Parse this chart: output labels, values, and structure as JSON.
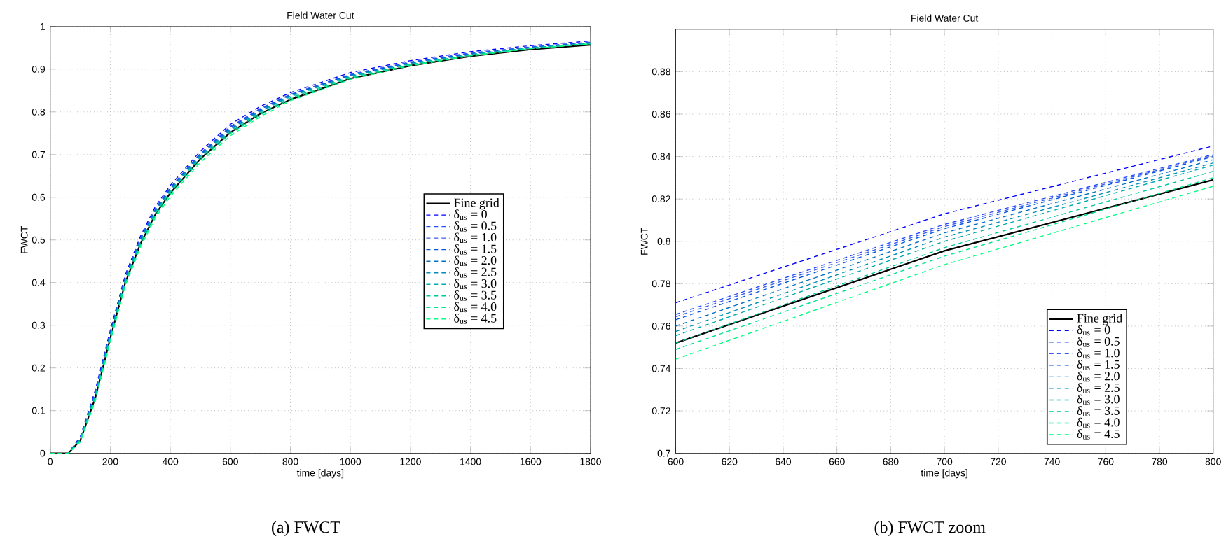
{
  "chart_data": [
    {
      "type": "line",
      "title": "Field Water Cut",
      "xlabel": "time [days]",
      "ylabel": "FWCT",
      "x": [
        0,
        60,
        100,
        150,
        200,
        250,
        300,
        350,
        400,
        500,
        600,
        700,
        800,
        1000,
        1200,
        1400,
        1600,
        1800
      ],
      "xlim": [
        0,
        1800
      ],
      "xticks": [
        0,
        200,
        400,
        600,
        800,
        1000,
        1200,
        1400,
        1600,
        1800
      ],
      "ylim": [
        0,
        1
      ],
      "yticks": [
        0,
        0.1,
        0.2,
        0.3,
        0.4,
        0.5,
        0.6,
        0.7,
        0.8,
        0.9,
        1
      ],
      "grid": true,
      "legend": "right",
      "annotations": [
        "(a) FWCT"
      ],
      "series": [
        {
          "name": "Fine grid",
          "color": "#000000",
          "line_style": "solid",
          "values": [
            0,
            0,
            0.03,
            0.13,
            0.27,
            0.4,
            0.49,
            0.56,
            0.61,
            0.69,
            0.752,
            0.796,
            0.829,
            0.878,
            0.908,
            0.93,
            0.946,
            0.957
          ]
        },
        {
          "name": "δ$_{us}$ = 0",
          "color": "#0000ff",
          "line_style": "dashed",
          "values": [
            0,
            0,
            0.039,
            0.148,
            0.288,
            0.418,
            0.508,
            0.578,
            0.628,
            0.708,
            0.771,
            0.813,
            0.845,
            0.892,
            0.92,
            0.941,
            0.955,
            0.966
          ]
        },
        {
          "name": "δ$_{us}$ = 0.5",
          "color": "#2a4cf8",
          "line_style": "dashed",
          "values": [
            0,
            0,
            0.036,
            0.143,
            0.283,
            0.413,
            0.503,
            0.573,
            0.623,
            0.703,
            0.766,
            0.808,
            0.841,
            0.888,
            0.917,
            0.938,
            0.952,
            0.963
          ]
        },
        {
          "name": "δ$_{us}$ = 1.0",
          "color": "#3a5ef0",
          "line_style": "dashed",
          "values": [
            0,
            0,
            0.036,
            0.142,
            0.282,
            0.412,
            0.502,
            0.572,
            0.622,
            0.702,
            0.764,
            0.807,
            0.841,
            0.887,
            0.916,
            0.937,
            0.952,
            0.963
          ]
        },
        {
          "name": "δ$_{us}$ = 1.5",
          "color": "#0055e0",
          "line_style": "dashed",
          "values": [
            0,
            0,
            0.035,
            0.141,
            0.281,
            0.411,
            0.501,
            0.571,
            0.621,
            0.701,
            0.763,
            0.806,
            0.84,
            0.886,
            0.915,
            0.936,
            0.951,
            0.962
          ]
        },
        {
          "name": "δ$_{us}$ = 2.0",
          "color": "#0071c6",
          "line_style": "dashed",
          "values": [
            0,
            0,
            0.034,
            0.139,
            0.279,
            0.409,
            0.499,
            0.569,
            0.619,
            0.699,
            0.76,
            0.804,
            0.839,
            0.885,
            0.914,
            0.935,
            0.95,
            0.961
          ]
        },
        {
          "name": "δ$_{us}$ = 2.5",
          "color": "#008eb8",
          "line_style": "dashed",
          "values": [
            0,
            0,
            0.033,
            0.137,
            0.277,
            0.407,
            0.497,
            0.567,
            0.617,
            0.697,
            0.758,
            0.802,
            0.837,
            0.884,
            0.913,
            0.934,
            0.95,
            0.961
          ]
        },
        {
          "name": "δ$_{us}$ = 3.0",
          "color": "#00aaaa",
          "line_style": "dashed",
          "values": [
            0,
            0,
            0.032,
            0.135,
            0.275,
            0.405,
            0.495,
            0.565,
            0.615,
            0.695,
            0.756,
            0.8,
            0.836,
            0.883,
            0.912,
            0.934,
            0.95,
            0.96
          ]
        },
        {
          "name": "δ$_{us}$ = 3.5",
          "color": "#00c69c",
          "line_style": "dashed",
          "values": [
            0,
            0,
            0.031,
            0.132,
            0.272,
            0.402,
            0.492,
            0.562,
            0.612,
            0.692,
            0.752,
            0.797,
            0.833,
            0.881,
            0.911,
            0.933,
            0.949,
            0.96
          ]
        },
        {
          "name": "δ$_{us}$ = 4.0",
          "color": "#00e38e",
          "line_style": "dashed",
          "values": [
            0,
            0,
            0.028,
            0.127,
            0.267,
            0.397,
            0.487,
            0.557,
            0.607,
            0.687,
            0.749,
            0.793,
            0.83,
            0.879,
            0.91,
            0.932,
            0.948,
            0.959
          ]
        },
        {
          "name": "δ$_{us}$ = 4.5",
          "color": "#00ff80",
          "line_style": "dashed",
          "values": [
            0,
            0,
            0.026,
            0.122,
            0.262,
            0.392,
            0.482,
            0.552,
            0.602,
            0.682,
            0.744,
            0.789,
            0.826,
            0.876,
            0.908,
            0.931,
            0.948,
            0.959
          ]
        }
      ]
    },
    {
      "type": "line",
      "title": "Field Water Cut",
      "xlabel": "time [days]",
      "ylabel": "FWCT",
      "x": [
        600,
        700,
        800
      ],
      "xlim": [
        600,
        800
      ],
      "xticks": [
        600,
        620,
        640,
        660,
        680,
        700,
        720,
        740,
        760,
        780,
        800
      ],
      "ylim": [
        0.7,
        0.9
      ],
      "yticks": [
        0.7,
        0.72,
        0.74,
        0.76,
        0.78,
        0.8,
        0.82,
        0.84,
        0.86,
        0.88
      ],
      "grid": true,
      "legend": "bottom right",
      "annotations": [
        "(b) FWCT zoom"
      ],
      "series": [
        {
          "name": "Fine grid",
          "color": "#000000",
          "line_style": "solid",
          "values": [
            0.752,
            0.7955,
            0.829
          ]
        },
        {
          "name": "δ$_{us}$ = 0",
          "color": "#0000ff",
          "line_style": "dashed",
          "values": [
            0.771,
            0.813,
            0.845
          ]
        },
        {
          "name": "δ$_{us}$ = 0.5",
          "color": "#2a4cf8",
          "line_style": "dashed",
          "values": [
            0.7655,
            0.808,
            0.841
          ]
        },
        {
          "name": "δ$_{us}$ = 1.0",
          "color": "#3a5ef0",
          "line_style": "dashed",
          "values": [
            0.7644,
            0.807,
            0.8405
          ]
        },
        {
          "name": "δ$_{us}$ = 1.5",
          "color": "#0055e0",
          "line_style": "dashed",
          "values": [
            0.763,
            0.806,
            0.84
          ]
        },
        {
          "name": "δ$_{us}$ = 2.0",
          "color": "#0071c6",
          "line_style": "dashed",
          "values": [
            0.76,
            0.804,
            0.8385
          ]
        },
        {
          "name": "δ$_{us}$ = 2.5",
          "color": "#008eb8",
          "line_style": "dashed",
          "values": [
            0.7575,
            0.802,
            0.837
          ]
        },
        {
          "name": "δ$_{us}$ = 3.0",
          "color": "#00aaaa",
          "line_style": "dashed",
          "values": [
            0.7555,
            0.8,
            0.836
          ]
        },
        {
          "name": "δ$_{us}$ = 3.5",
          "color": "#00c69c",
          "line_style": "dashed",
          "values": [
            0.752,
            0.797,
            0.833
          ]
        },
        {
          "name": "δ$_{us}$ = 4.0",
          "color": "#00e38e",
          "line_style": "dashed",
          "values": [
            0.749,
            0.793,
            0.83
          ]
        },
        {
          "name": "δ$_{us}$ = 4.5",
          "color": "#00ff80",
          "line_style": "dashed",
          "values": [
            0.7444,
            0.789,
            0.826
          ]
        }
      ]
    }
  ]
}
